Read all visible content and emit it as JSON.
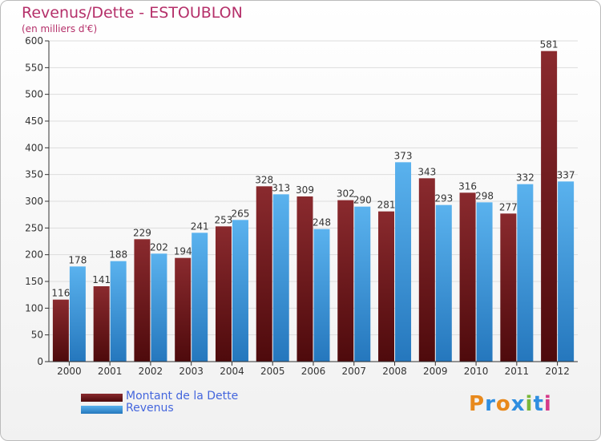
{
  "header": {
    "title": "Revenus/Dette - ESTOUBLON",
    "subtitle": "(en milliers d'€)"
  },
  "logo": {
    "text": "Proxiti",
    "colors": [
      "#e8891c",
      "#2f8ee0",
      "#e8891c",
      "#2f8ee0",
      "#7ab73a",
      "#2f8ee0",
      "#d53a8a"
    ]
  },
  "chart_data": {
    "type": "bar",
    "categories": [
      "2000",
      "2001",
      "2002",
      "2003",
      "2004",
      "2005",
      "2006",
      "2007",
      "2008",
      "2009",
      "2010",
      "2011",
      "2012"
    ],
    "series": [
      {
        "name": "Montant de la Dette",
        "color": "#7a1a1e",
        "values": [
          116,
          141,
          229,
          194,
          253,
          328,
          309,
          302,
          281,
          343,
          316,
          277,
          581
        ]
      },
      {
        "name": "Revenus",
        "color": "#3f9ee3",
        "values": [
          178,
          188,
          202,
          241,
          265,
          313,
          248,
          290,
          373,
          293,
          298,
          332,
          337
        ]
      }
    ],
    "title": "Revenus/Dette - ESTOUBLON",
    "subtitle": "(en milliers d'€)",
    "ylim": [
      0,
      600
    ],
    "yticks": [
      0,
      50,
      100,
      150,
      200,
      250,
      300,
      350,
      400,
      450,
      500,
      550,
      600
    ],
    "grid": true,
    "legend": "bottom-left"
  }
}
